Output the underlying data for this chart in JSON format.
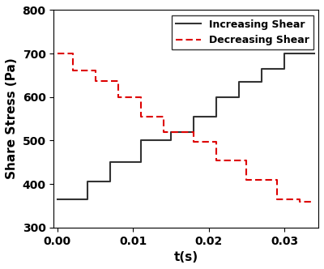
{
  "xlabel": "t(s)",
  "ylabel": "Share Stress (Pa)",
  "xlim": [
    -0.0005,
    0.0345
  ],
  "ylim": [
    300,
    800
  ],
  "yticks": [
    300,
    400,
    500,
    600,
    700,
    800
  ],
  "xticks": [
    0.0,
    0.01,
    0.02,
    0.03
  ],
  "increasing_x": [
    0.0,
    0.004,
    0.004,
    0.007,
    0.007,
    0.011,
    0.011,
    0.015,
    0.015,
    0.018,
    0.018,
    0.021,
    0.021,
    0.024,
    0.024,
    0.027,
    0.027,
    0.03,
    0.03,
    0.034
  ],
  "increasing_y": [
    365,
    365,
    405,
    405,
    450,
    450,
    500,
    500,
    520,
    520,
    555,
    555,
    600,
    600,
    635,
    635,
    665,
    665,
    700,
    700
  ],
  "decreasing_x": [
    0.0,
    0.002,
    0.002,
    0.005,
    0.005,
    0.008,
    0.008,
    0.011,
    0.011,
    0.014,
    0.014,
    0.018,
    0.018,
    0.021,
    0.021,
    0.025,
    0.025,
    0.029,
    0.029,
    0.032,
    0.032,
    0.034
  ],
  "decreasing_y": [
    700,
    700,
    662,
    662,
    637,
    637,
    600,
    600,
    555,
    555,
    520,
    520,
    498,
    498,
    455,
    455,
    410,
    410,
    365,
    365,
    360,
    360
  ],
  "increasing_color": "#333333",
  "decreasing_color": "#dd0000",
  "linewidth": 1.5,
  "legend_fontsize": 9,
  "axis_label_fontsize": 11,
  "tick_fontsize": 10,
  "background_color": "#ffffff"
}
